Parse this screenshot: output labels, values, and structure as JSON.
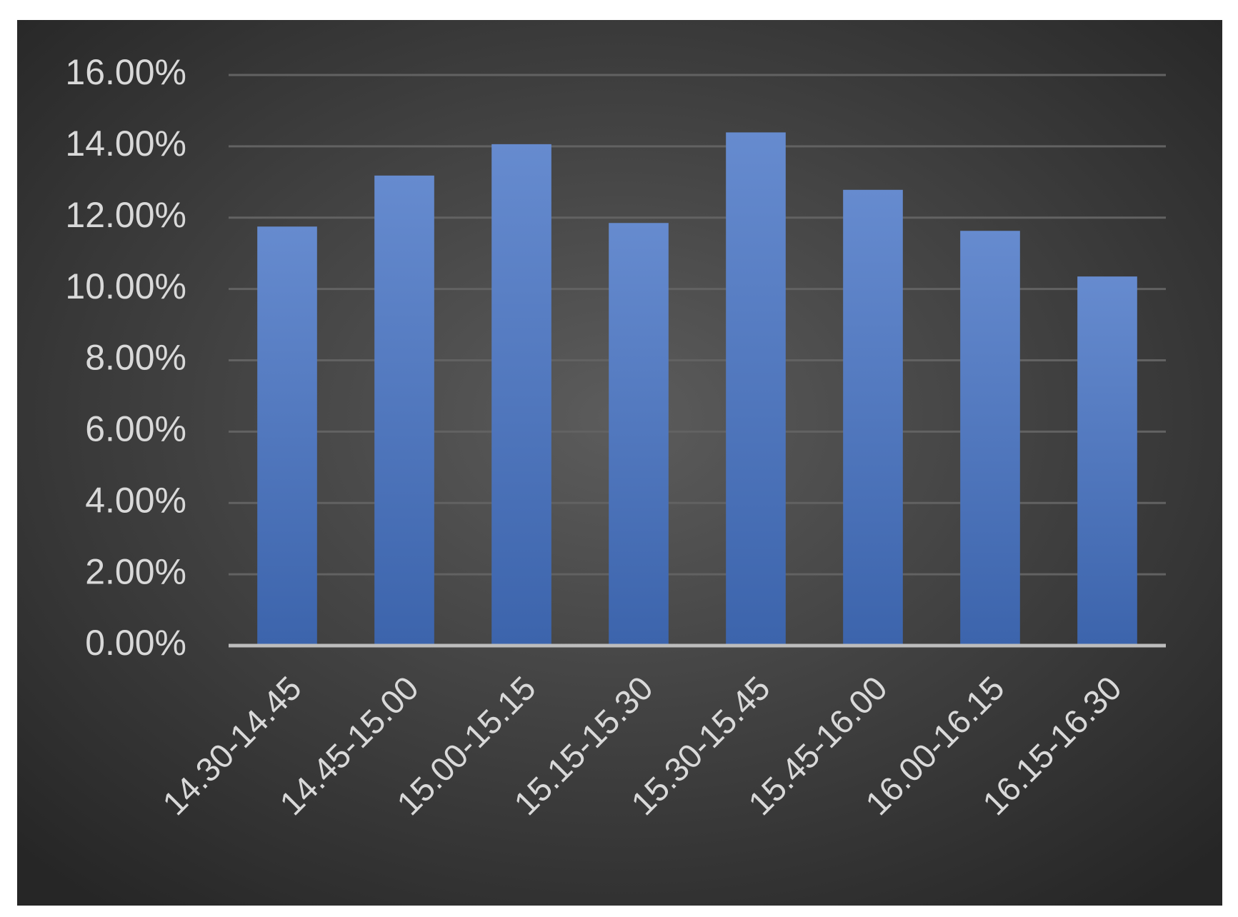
{
  "chart_data": {
    "type": "bar",
    "categories": [
      "14.30-14.45",
      "14.45-15.00",
      "15.00-15.15",
      "15.15-15.30",
      "15.30-15.45",
      "15.45-16.00",
      "16.00-16.15",
      "16.15-16.30"
    ],
    "values": [
      11.75,
      13.18,
      14.06,
      11.85,
      14.39,
      12.78,
      11.63,
      10.35
    ],
    "color": "#4472c4",
    "ylim": [
      0,
      16
    ],
    "yticks": [
      {
        "value": 0,
        "label": "0.00%"
      },
      {
        "value": 2,
        "label": "2.00%"
      },
      {
        "value": 4,
        "label": "4.00%"
      },
      {
        "value": 6,
        "label": "6.00%"
      },
      {
        "value": 8,
        "label": "8.00%"
      },
      {
        "value": 10,
        "label": "10.00%"
      },
      {
        "value": 12,
        "label": "12.00%"
      },
      {
        "value": 14,
        "label": "14.00%"
      },
      {
        "value": 16,
        "label": "16.00%"
      }
    ],
    "grid": true
  }
}
